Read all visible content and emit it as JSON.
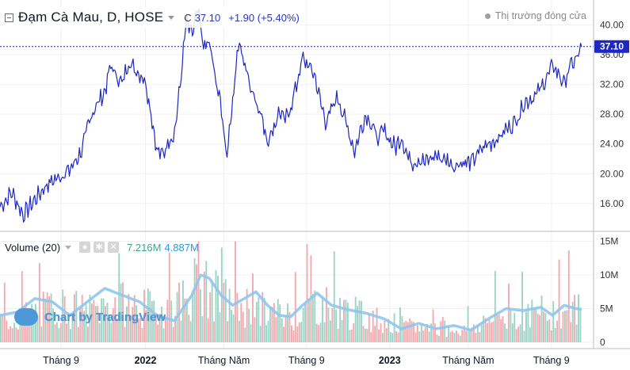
{
  "header": {
    "symbol_title": "Đạm Cà Mau, D, HOSE",
    "ohlc_key": "C",
    "close": "37.10",
    "change": "+1.90 (+5.40%)",
    "market_status": "Thị trường đóng cửa"
  },
  "volume_pane": {
    "title": "Volume (20)",
    "value_1": "7.216M",
    "value_2": "4.887M"
  },
  "watermark": "Chart by TradingView",
  "colors": {
    "price_line": "#1c27c4",
    "price_tag": "#1c27c4",
    "volume_up": "#9bd3c4",
    "volume_down": "#f2a9ae",
    "volume_ma": "#8fc6ee",
    "grid": "#f0f0f0"
  },
  "chart_data": {
    "type": "line",
    "price_axis_ticks": [
      "16.00",
      "20.00",
      "24.00",
      "28.00",
      "32.00",
      "36.00",
      "40.00"
    ],
    "price_ylim": [
      13,
      42.5
    ],
    "last_price_label": "37.10",
    "volume_axis_ticks": [
      "0",
      "5M",
      "10M",
      "15M"
    ],
    "volume_ylim": [
      0,
      16
    ],
    "x_ticks": [
      {
        "label": "Tháng 9",
        "t": 0.105,
        "bold": false
      },
      {
        "label": "2022",
        "t": 0.25,
        "bold": true
      },
      {
        "label": "Tháng Năm",
        "t": 0.385,
        "bold": false
      },
      {
        "label": "Tháng 9",
        "t": 0.527,
        "bold": false
      },
      {
        "label": "2023",
        "t": 0.67,
        "bold": true
      },
      {
        "label": "Tháng Năm",
        "t": 0.805,
        "bold": false
      },
      {
        "label": "Tháng 9",
        "t": 0.948,
        "bold": false
      }
    ],
    "price_series": [
      [
        0.0,
        15.5
      ],
      [
        0.02,
        17.5
      ],
      [
        0.04,
        14.5
      ],
      [
        0.06,
        16.5
      ],
      [
        0.08,
        18.5
      ],
      [
        0.1,
        19.5
      ],
      [
        0.12,
        20.5
      ],
      [
        0.14,
        23.0
      ],
      [
        0.15,
        26.0
      ],
      [
        0.16,
        28.5
      ],
      [
        0.18,
        31.0
      ],
      [
        0.19,
        34.5
      ],
      [
        0.21,
        32.0
      ],
      [
        0.22,
        35.0
      ],
      [
        0.24,
        33.5
      ],
      [
        0.25,
        32.5
      ],
      [
        0.26,
        28.0
      ],
      [
        0.27,
        23.0
      ],
      [
        0.28,
        22.5
      ],
      [
        0.29,
        24.5
      ],
      [
        0.3,
        25.5
      ],
      [
        0.31,
        32.0
      ],
      [
        0.32,
        40.5
      ],
      [
        0.33,
        38.5
      ],
      [
        0.34,
        42.0
      ],
      [
        0.35,
        37.0
      ],
      [
        0.36,
        37.5
      ],
      [
        0.37,
        33.0
      ],
      [
        0.38,
        29.0
      ],
      [
        0.39,
        22.5
      ],
      [
        0.4,
        30.0
      ],
      [
        0.41,
        37.5
      ],
      [
        0.42,
        35.0
      ],
      [
        0.43,
        32.0
      ],
      [
        0.44,
        30.0
      ],
      [
        0.45,
        27.5
      ],
      [
        0.46,
        24.5
      ],
      [
        0.47,
        26.0
      ],
      [
        0.48,
        28.5
      ],
      [
        0.49,
        27.0
      ],
      [
        0.5,
        29.0
      ],
      [
        0.51,
        32.0
      ],
      [
        0.52,
        35.5
      ],
      [
        0.53,
        34.5
      ],
      [
        0.54,
        33.5
      ],
      [
        0.55,
        30.0
      ],
      [
        0.56,
        27.0
      ],
      [
        0.57,
        28.5
      ],
      [
        0.58,
        30.5
      ],
      [
        0.59,
        28.0
      ],
      [
        0.6,
        25.5
      ],
      [
        0.61,
        23.0
      ],
      [
        0.62,
        26.0
      ],
      [
        0.63,
        28.0
      ],
      [
        0.64,
        26.5
      ],
      [
        0.65,
        24.5
      ],
      [
        0.66,
        26.0
      ],
      [
        0.67,
        24.5
      ],
      [
        0.68,
        23.5
      ],
      [
        0.69,
        25.0
      ],
      [
        0.7,
        22.5
      ],
      [
        0.71,
        21.5
      ],
      [
        0.72,
        22.0
      ],
      [
        0.73,
        21.5
      ],
      [
        0.74,
        22.0
      ],
      [
        0.75,
        22.5
      ],
      [
        0.76,
        22.0
      ],
      [
        0.77,
        21.8
      ],
      [
        0.78,
        21.0
      ],
      [
        0.79,
        21.5
      ],
      [
        0.8,
        21.5
      ],
      [
        0.81,
        21.5
      ],
      [
        0.82,
        22.5
      ],
      [
        0.83,
        23.5
      ],
      [
        0.84,
        24.0
      ],
      [
        0.85,
        24.5
      ],
      [
        0.86,
        25.0
      ],
      [
        0.87,
        26.0
      ],
      [
        0.88,
        26.5
      ],
      [
        0.89,
        27.5
      ],
      [
        0.9,
        29.5
      ],
      [
        0.91,
        30.0
      ],
      [
        0.92,
        30.5
      ],
      [
        0.93,
        31.5
      ],
      [
        0.94,
        33.0
      ],
      [
        0.95,
        34.5
      ],
      [
        0.96,
        33.5
      ],
      [
        0.97,
        32.0
      ],
      [
        0.98,
        34.5
      ],
      [
        0.99,
        35.2
      ],
      [
        1.0,
        37.1
      ]
    ],
    "volume_ma_series": [
      [
        0.0,
        4.0
      ],
      [
        0.03,
        4.5
      ],
      [
        0.06,
        6.5
      ],
      [
        0.09,
        6.0
      ],
      [
        0.12,
        4.0
      ],
      [
        0.15,
        6.0
      ],
      [
        0.18,
        8.0
      ],
      [
        0.21,
        7.0
      ],
      [
        0.24,
        6.0
      ],
      [
        0.27,
        4.0
      ],
      [
        0.3,
        3.2
      ],
      [
        0.33,
        7.0
      ],
      [
        0.345,
        10.0
      ],
      [
        0.36,
        9.5
      ],
      [
        0.38,
        7.0
      ],
      [
        0.4,
        5.5
      ],
      [
        0.42,
        6.5
      ],
      [
        0.44,
        7.5
      ],
      [
        0.46,
        5.5
      ],
      [
        0.48,
        4.0
      ],
      [
        0.5,
        3.8
      ],
      [
        0.52,
        5.5
      ],
      [
        0.545,
        7.3
      ],
      [
        0.57,
        5.5
      ],
      [
        0.6,
        4.8
      ],
      [
        0.63,
        4.3
      ],
      [
        0.66,
        3.5
      ],
      [
        0.69,
        2.0
      ],
      [
        0.72,
        2.8
      ],
      [
        0.75,
        2.0
      ],
      [
        0.78,
        2.5
      ],
      [
        0.81,
        1.8
      ],
      [
        0.84,
        3.5
      ],
      [
        0.87,
        5.0
      ],
      [
        0.9,
        4.7
      ],
      [
        0.93,
        5.2
      ],
      [
        0.95,
        4.0
      ],
      [
        0.97,
        5.5
      ],
      [
        0.99,
        5.0
      ],
      [
        1.0,
        4.9
      ]
    ],
    "volume_bar_envelope": [
      [
        0.0,
        3.5
      ],
      [
        0.05,
        4.5
      ],
      [
        0.1,
        6.0
      ],
      [
        0.15,
        5.0
      ],
      [
        0.2,
        6.5
      ],
      [
        0.25,
        5.5
      ],
      [
        0.3,
        6.0
      ],
      [
        0.34,
        9.5
      ],
      [
        0.38,
        7.0
      ],
      [
        0.42,
        6.0
      ],
      [
        0.46,
        5.0
      ],
      [
        0.5,
        4.5
      ],
      [
        0.54,
        6.5
      ],
      [
        0.58,
        5.5
      ],
      [
        0.62,
        4.5
      ],
      [
        0.66,
        3.5
      ],
      [
        0.7,
        2.5
      ],
      [
        0.75,
        2.5
      ],
      [
        0.8,
        2.0
      ],
      [
        0.85,
        4.0
      ],
      [
        0.9,
        4.5
      ],
      [
        0.95,
        5.0
      ],
      [
        1.0,
        5.5
      ]
    ]
  }
}
